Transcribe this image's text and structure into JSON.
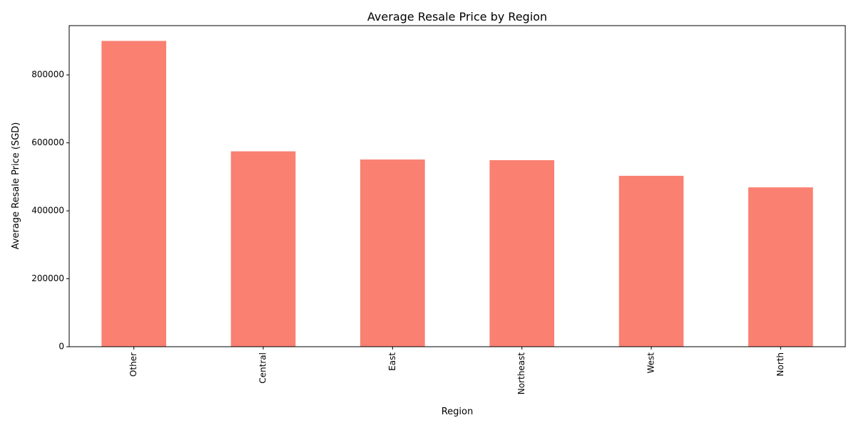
{
  "chart_data": {
    "type": "bar",
    "title": "Average Resale Price by Region",
    "xlabel": "Region",
    "ylabel": "Average Resale Price (SGD)",
    "categories": [
      "Other",
      "Central",
      "East",
      "Northeast",
      "West",
      "North"
    ],
    "values": [
      900000,
      575000,
      551000,
      549000,
      503000,
      469000
    ],
    "ylim": [
      0,
      945000
    ],
    "yticks": [
      0,
      200000,
      400000,
      600000,
      800000
    ],
    "ytick_labels": [
      "0",
      "200000",
      "400000",
      "600000",
      "800000"
    ],
    "grid": false,
    "legend": "none",
    "bar_color": "#fa8072",
    "tick_label_rotation": "vertical"
  }
}
